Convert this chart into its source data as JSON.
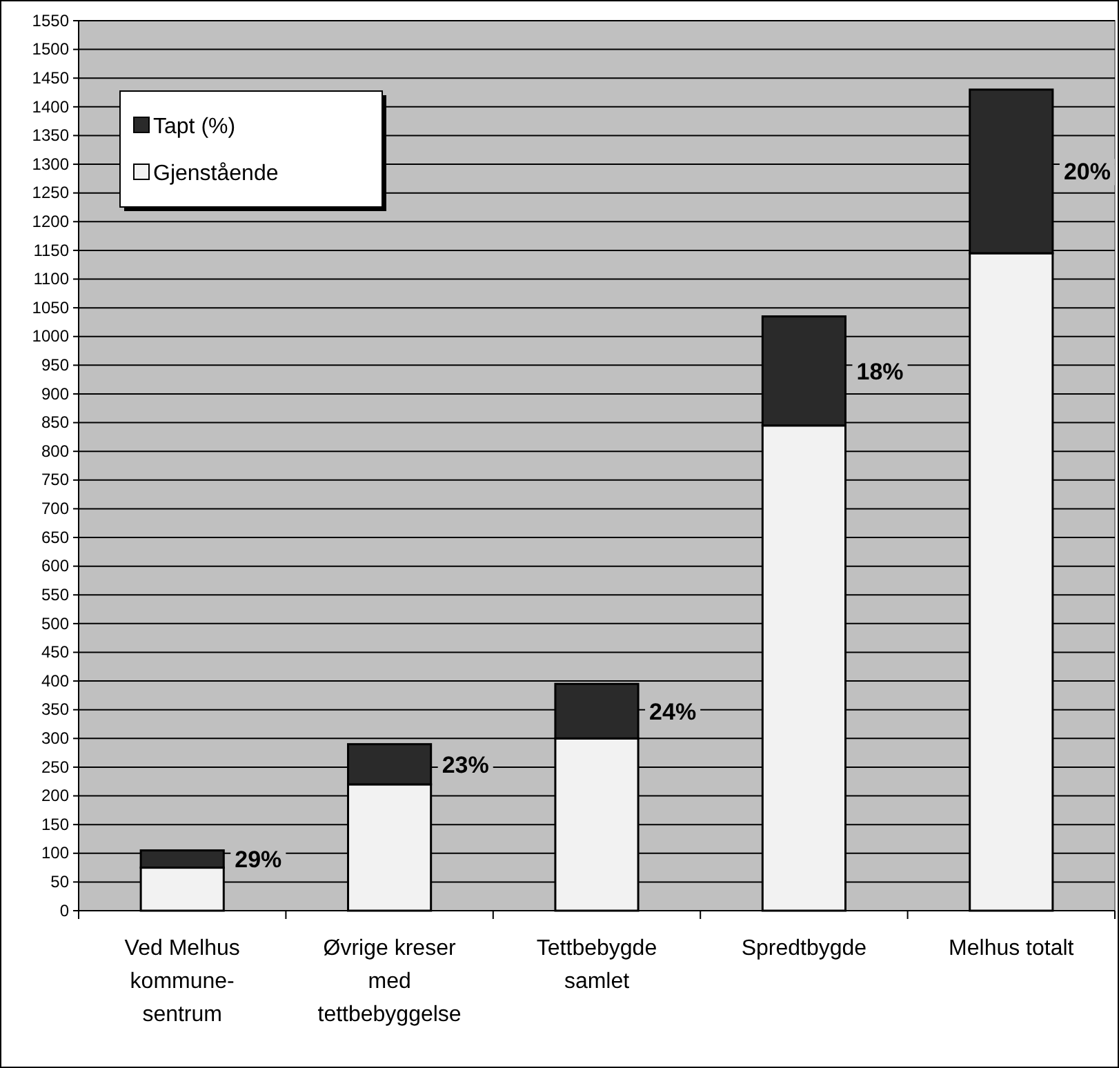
{
  "chart_data": {
    "type": "bar",
    "stacked": true,
    "categories": [
      "Ved Melhus kommune-sentrum",
      "Øvrige kreser med tettbebyggelse",
      "Tettbebygde samlet",
      "Spredtbygde",
      "Melhus totalt"
    ],
    "series": [
      {
        "name": "Gjenstående",
        "color": "#f2f2f2",
        "values": [
          75,
          220,
          300,
          845,
          1145
        ]
      },
      {
        "name": "Tapt (%)",
        "color": "#2a2a2a",
        "values": [
          30,
          70,
          95,
          190,
          285
        ]
      }
    ],
    "ylim": [
      0,
      1550
    ],
    "yticks": [
      0,
      50,
      100,
      150,
      200,
      250,
      300,
      350,
      400,
      450,
      500,
      550,
      600,
      650,
      700,
      750,
      800,
      850,
      900,
      950,
      1000,
      1050,
      1100,
      1150,
      1200,
      1250,
      1300,
      1350,
      1400,
      1450,
      1500,
      1550
    ],
    "grid": "y",
    "legend": "top left",
    "annotations": [
      "29%",
      "23%",
      "24%",
      "18%",
      "20%"
    ]
  }
}
